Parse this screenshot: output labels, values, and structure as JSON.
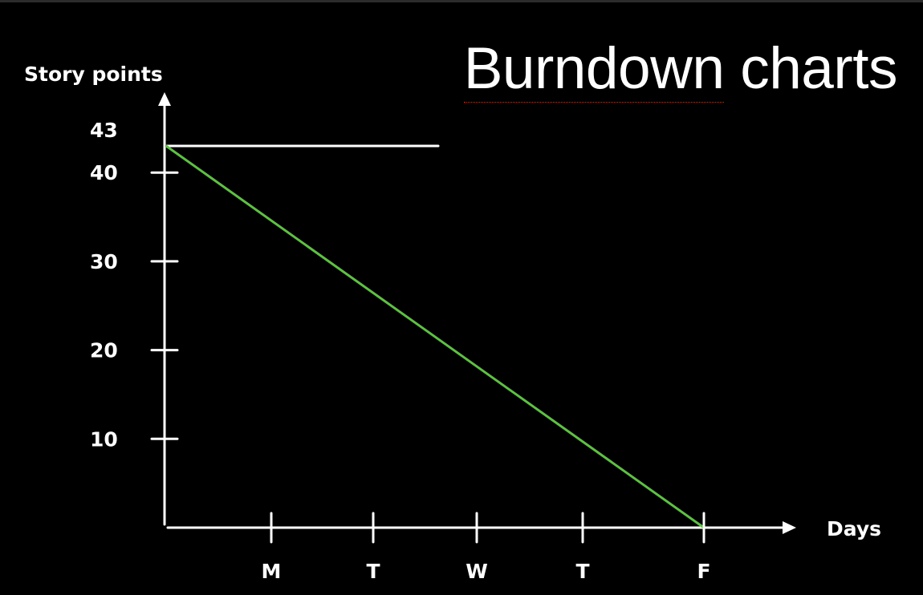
{
  "slide": {
    "title_part1": "Burndown",
    "title_part2": " charts"
  },
  "colors": {
    "background": "#000000",
    "axis": "#ffffff",
    "ideal_line": "#5fbf45",
    "title": "#ffffff"
  },
  "chart_data": {
    "type": "line",
    "title": "Burndown charts",
    "xlabel": "Days",
    "ylabel": "Story points",
    "x_ticks": [
      "M",
      "T",
      "W",
      "T",
      "F"
    ],
    "y_ticks": [
      10,
      20,
      30,
      40
    ],
    "ylim": [
      0,
      43
    ],
    "total_label": "43",
    "total_points": 43,
    "series": [
      {
        "x": [
          "start",
          "F"
        ],
        "values": [
          43,
          0
        ],
        "color": "#5fbf45"
      }
    ],
    "reference_line": {
      "value": 43,
      "from": "start",
      "to": "W"
    },
    "grid": false
  }
}
